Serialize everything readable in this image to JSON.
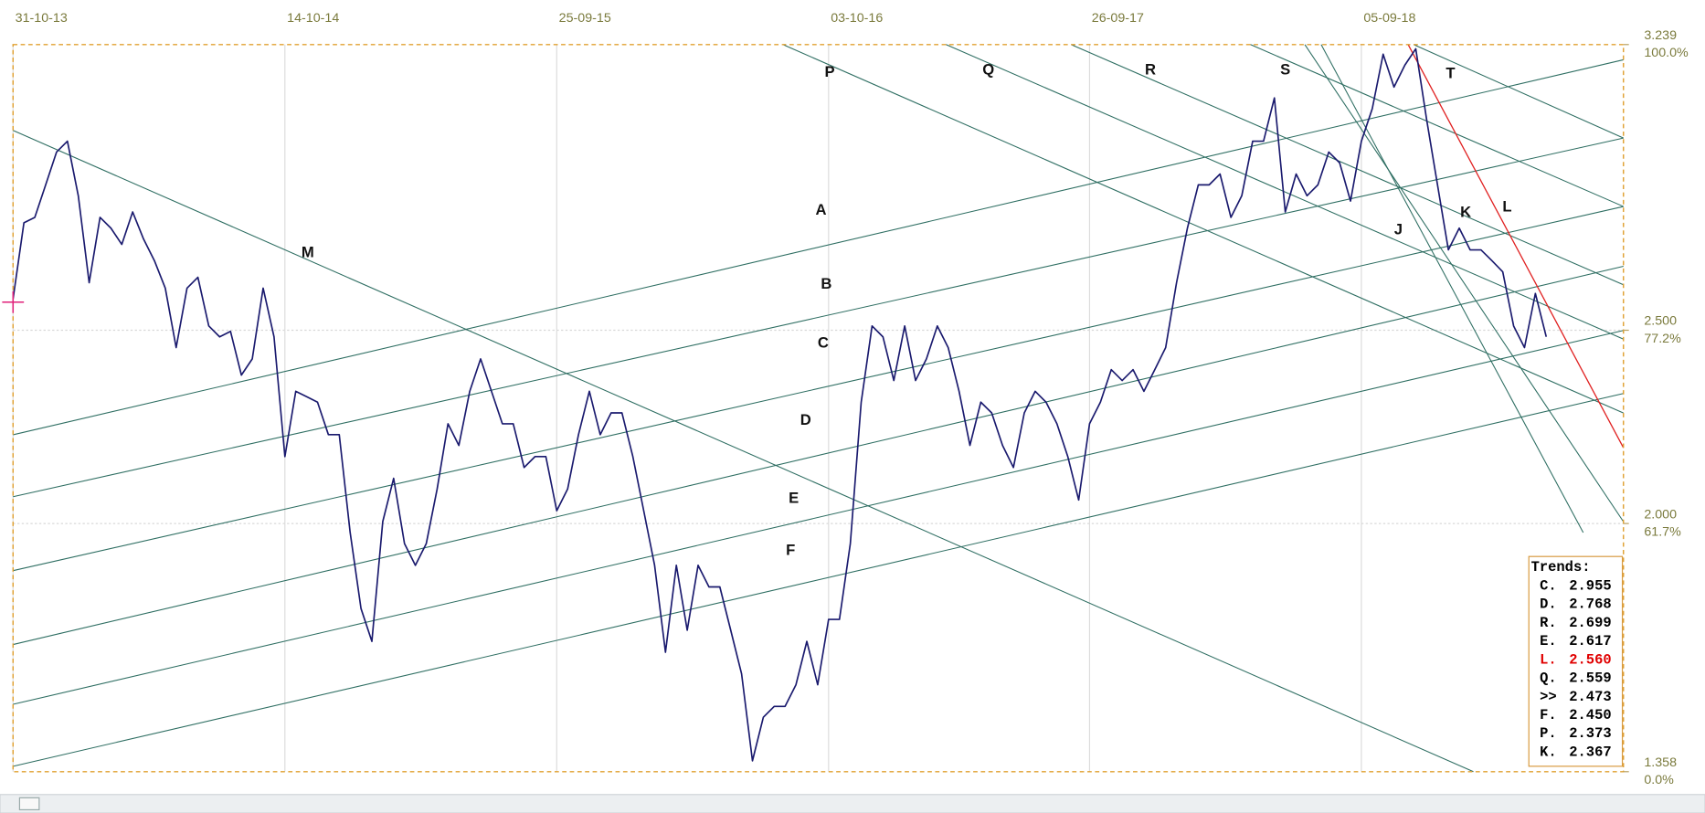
{
  "chart_data": {
    "type": "line",
    "color": "#1a1a6e",
    "categories": [
      "31-10-13",
      null,
      null,
      null,
      null,
      null,
      null,
      null,
      null,
      null,
      null,
      null,
      null,
      null,
      null,
      null,
      null,
      null,
      null,
      null,
      null,
      null,
      null,
      null,
      null,
      "14-10-14",
      null,
      null,
      null,
      null,
      null,
      null,
      null,
      null,
      null,
      null,
      null,
      null,
      null,
      null,
      null,
      null,
      null,
      null,
      null,
      null,
      null,
      null,
      null,
      null,
      "25-09-15",
      null,
      null,
      null,
      null,
      null,
      null,
      null,
      null,
      null,
      null,
      null,
      null,
      null,
      null,
      null,
      null,
      null,
      null,
      null,
      null,
      null,
      null,
      null,
      null,
      "03-10-16",
      null,
      null,
      null,
      null,
      null,
      null,
      null,
      null,
      null,
      null,
      null,
      null,
      null,
      null,
      null,
      null,
      null,
      null,
      null,
      null,
      null,
      null,
      null,
      "26-09-17",
      null,
      null,
      null,
      null,
      null,
      null,
      null,
      null,
      null,
      null,
      null,
      null,
      null,
      null,
      null,
      null,
      null,
      null,
      null,
      null,
      null,
      null,
      null,
      null,
      "05-09-18",
      null,
      null,
      null,
      null,
      null,
      null,
      null,
      null,
      null,
      null,
      null,
      null,
      null,
      null,
      null,
      null,
      null
    ],
    "values": [
      2.581,
      2.778,
      2.792,
      2.876,
      2.961,
      2.989,
      2.848,
      2.623,
      2.792,
      2.764,
      2.722,
      2.806,
      2.736,
      2.68,
      2.609,
      2.455,
      2.609,
      2.637,
      2.511,
      2.483,
      2.497,
      2.384,
      2.426,
      2.609,
      2.483,
      2.173,
      2.342,
      2.328,
      2.314,
      2.23,
      2.23,
      1.977,
      1.78,
      1.695,
      2.005,
      2.117,
      1.948,
      1.892,
      1.948,
      2.089,
      2.258,
      2.202,
      2.342,
      2.426,
      2.342,
      2.258,
      2.258,
      2.145,
      2.173,
      2.173,
      2.033,
      2.089,
      2.23,
      2.342,
      2.23,
      2.286,
      2.286,
      2.173,
      2.033,
      1.892,
      1.667,
      1.892,
      1.724,
      1.892,
      1.836,
      1.836,
      1.724,
      1.611,
      1.386,
      1.499,
      1.527,
      1.527,
      1.583,
      1.695,
      1.583,
      1.752,
      1.752,
      1.948,
      2.314,
      2.511,
      2.483,
      2.37,
      2.511,
      2.37,
      2.426,
      2.511,
      2.455,
      2.342,
      2.202,
      2.314,
      2.286,
      2.202,
      2.145,
      2.286,
      2.342,
      2.314,
      2.258,
      2.173,
      2.061,
      2.258,
      2.314,
      2.398,
      2.37,
      2.398,
      2.342,
      2.398,
      2.455,
      2.623,
      2.764,
      2.876,
      2.876,
      2.904,
      2.792,
      2.848,
      2.989,
      2.989,
      3.101,
      2.806,
      2.904,
      2.848,
      2.876,
      2.961,
      2.933,
      2.834,
      2.989,
      3.073,
      3.214,
      3.129,
      3.186,
      3.228,
      3.045,
      2.876,
      2.708,
      2.764,
      2.708,
      2.708,
      2.68,
      2.651,
      2.511,
      2.455,
      2.595,
      2.483
    ],
    "ylim": [
      1.358,
      3.239
    ],
    "yticks": [
      3.239,
      {
        "value": 2.5,
        "label": "2.500"
      },
      {
        "value": 2,
        "label": "2.000"
      },
      1.358
    ],
    "ytick_percent_labels": [
      "100.0%",
      "77.2%",
      "61.7%",
      "0.0%"
    ],
    "grid": true,
    "line_labels": [
      "A",
      "B",
      "C",
      "D",
      "E",
      "F",
      "M",
      "P",
      "Q",
      "R",
      "S",
      "T",
      "J",
      "K",
      "L"
    ],
    "trends": {
      "title": "Trends:",
      "rows": [
        {
          "label": "C.",
          "value": "2.955"
        },
        {
          "label": "D.",
          "value": "2.768"
        },
        {
          "label": "R.",
          "value": "2.699"
        },
        {
          "label": "E.",
          "value": "2.617"
        },
        {
          "label": "L.",
          "value": "2.560",
          "color": "#e00000"
        },
        {
          "label": "Q.",
          "value": "2.559"
        },
        {
          "label": ">>",
          "value": "2.473"
        },
        {
          "label": "F.",
          "value": "2.450"
        },
        {
          "label": "P.",
          "value": "2.373"
        },
        {
          "label": "K.",
          "value": "2.367"
        }
      ]
    }
  }
}
